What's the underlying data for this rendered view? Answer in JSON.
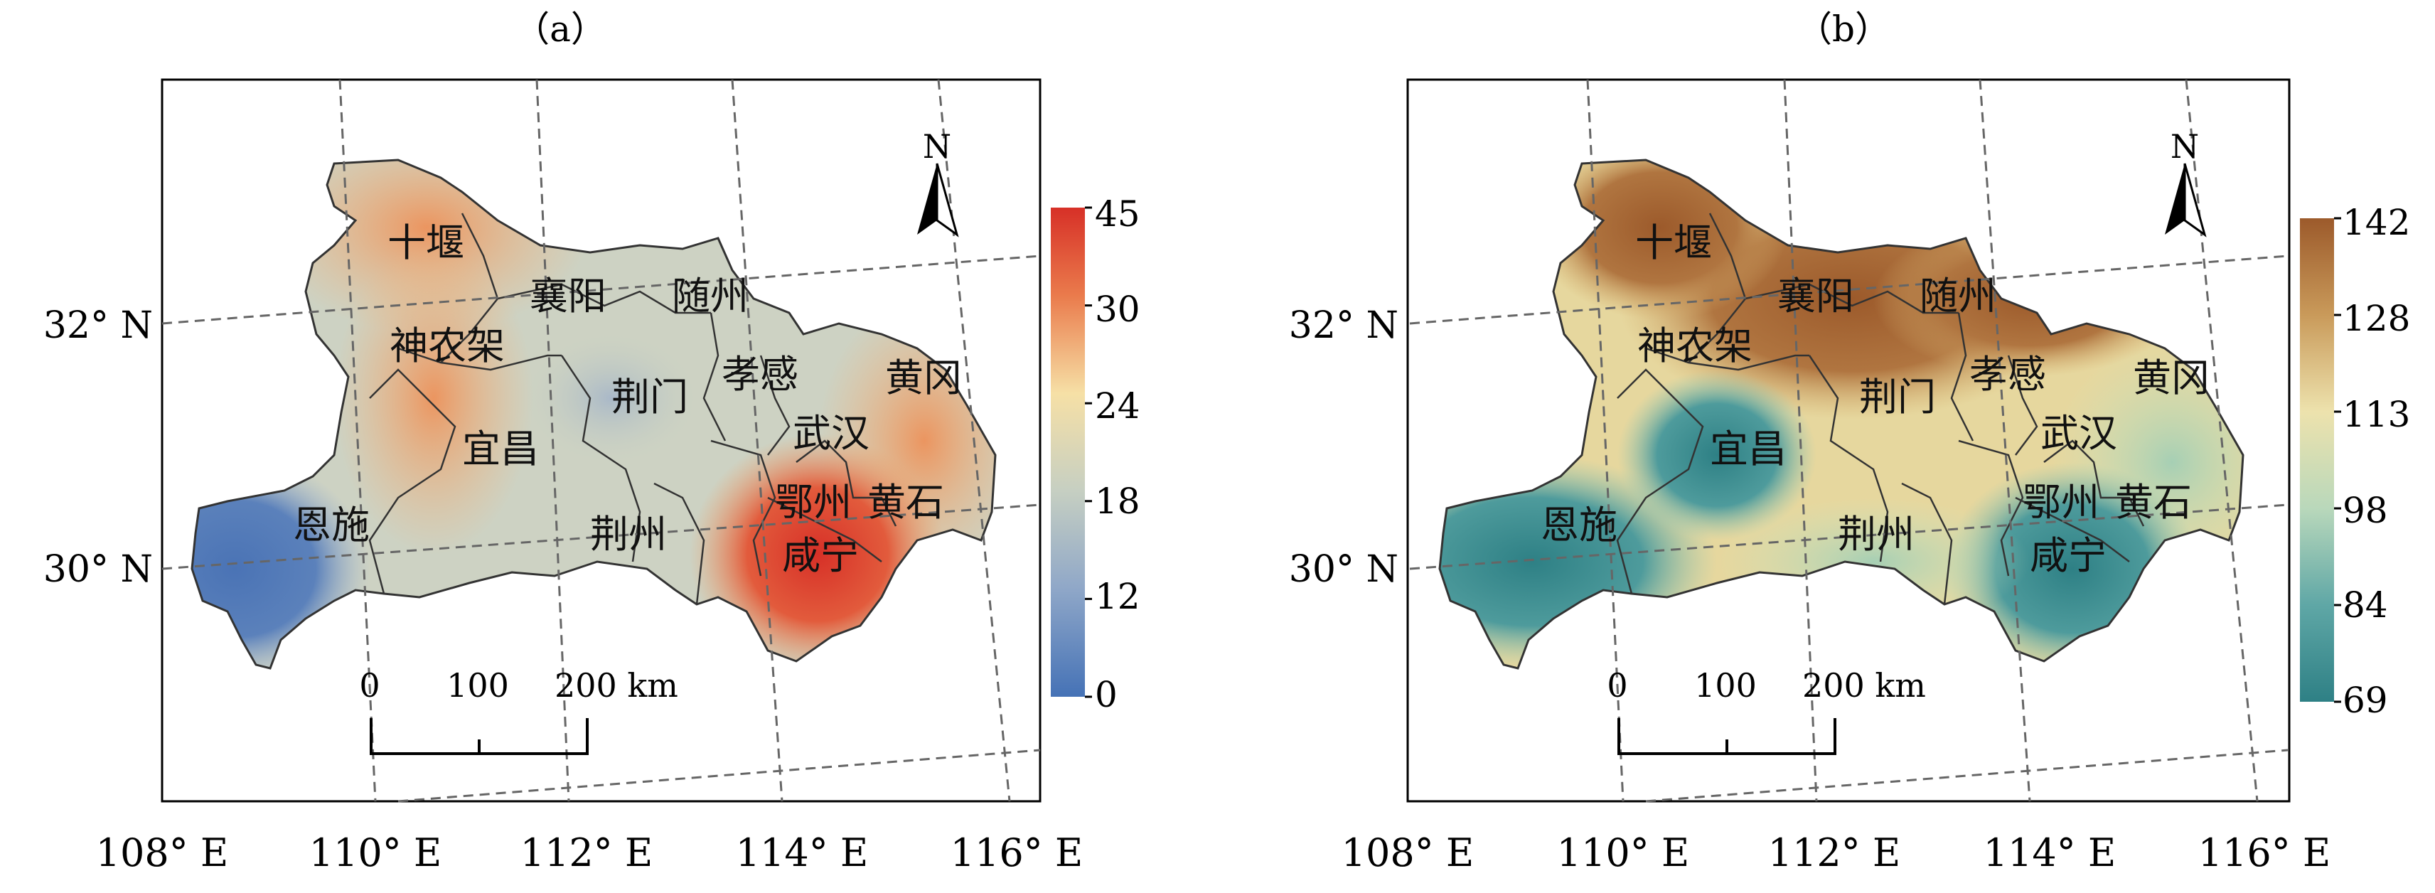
{
  "panels": [
    {
      "id": "a",
      "label": "（a）",
      "legend": {
        "ticks": [
          "45",
          "30",
          "24",
          "18",
          "12",
          "0"
        ],
        "colors": [
          "#d73027",
          "#f1a165",
          "#f6e0a6",
          "#c6cfc2",
          "#8fa7c8",
          "#4572b6"
        ]
      },
      "north": "N",
      "scale": {
        "labels": [
          "0",
          "100",
          "200 km"
        ]
      },
      "lat_labels": [
        "32° N",
        "30° N"
      ],
      "lon_labels": [
        "108° E",
        "110° E",
        "112° E",
        "114° E",
        "116° E"
      ],
      "cities": [
        {
          "name": "十堰"
        },
        {
          "name": "襄阳"
        },
        {
          "name": "随州"
        },
        {
          "name": "神农架"
        },
        {
          "name": "荆门"
        },
        {
          "name": "孝感"
        },
        {
          "name": "黄冈"
        },
        {
          "name": "宜昌"
        },
        {
          "name": "武汉"
        },
        {
          "name": "恩施"
        },
        {
          "name": "鄂州"
        },
        {
          "name": "黄石"
        },
        {
          "name": "荆州"
        },
        {
          "name": "咸宁"
        }
      ]
    },
    {
      "id": "b",
      "label": "（b）",
      "legend": {
        "ticks": [
          "142",
          "128",
          "113",
          "98",
          "84",
          "69"
        ],
        "colors": [
          "#9c5a2b",
          "#c99a5a",
          "#ede2ad",
          "#b9d8bb",
          "#5fa7a6",
          "#2e8085"
        ]
      },
      "north": "N",
      "scale": {
        "labels": [
          "0",
          "100",
          "200 km"
        ]
      },
      "lat_labels": [
        "32° N",
        "30° N"
      ],
      "lon_labels": [
        "108° E",
        "110° E",
        "112° E",
        "114° E",
        "116° E"
      ],
      "cities": [
        {
          "name": "十堰"
        },
        {
          "name": "襄阳"
        },
        {
          "name": "随州"
        },
        {
          "name": "神农架"
        },
        {
          "name": "荆门"
        },
        {
          "name": "孝感"
        },
        {
          "name": "黄冈"
        },
        {
          "name": "宜昌"
        },
        {
          "name": "武汉"
        },
        {
          "name": "恩施"
        },
        {
          "name": "鄂州"
        },
        {
          "name": "黄石"
        },
        {
          "name": "荆州"
        },
        {
          "name": "咸宁"
        }
      ]
    }
  ]
}
